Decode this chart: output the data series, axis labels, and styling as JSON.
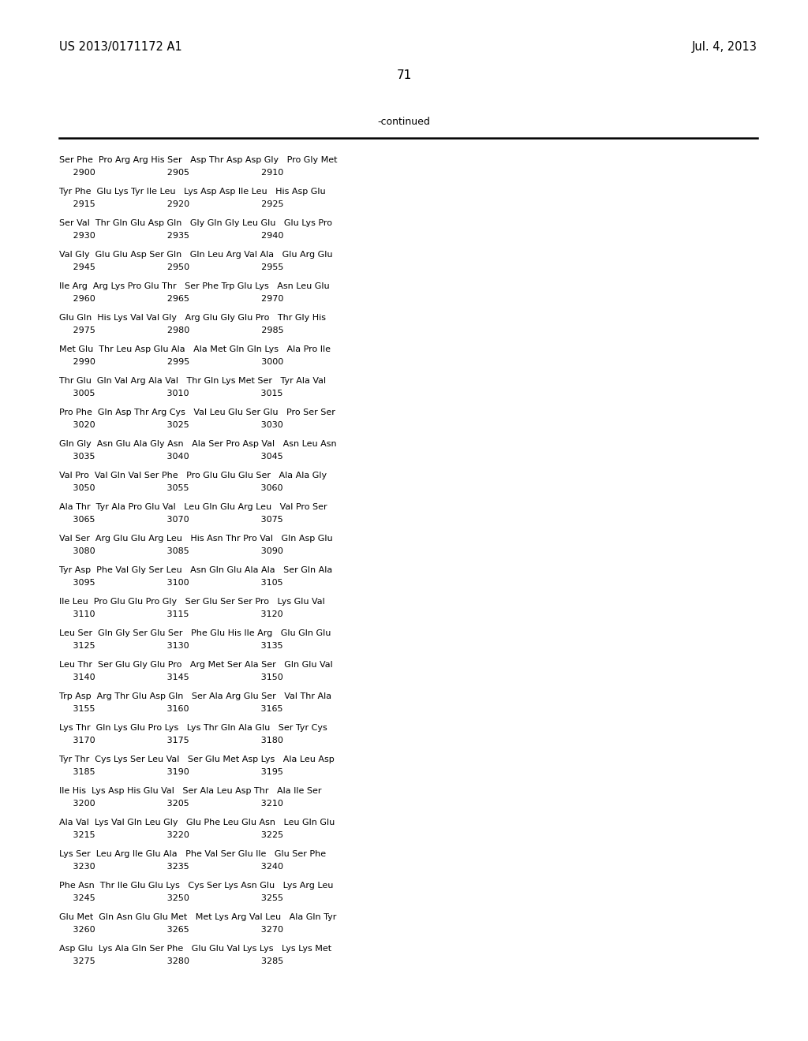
{
  "header_left": "US 2013/0171172 A1",
  "header_right": "Jul. 4, 2013",
  "page_number": "71",
  "continued_label": "-continued",
  "background_color": "#ffffff",
  "text_color": "#000000",
  "rows": [
    [
      "Ser Phe  Pro Arg Arg His Ser   Asp Thr Asp Asp Gly   Pro Gly Met",
      "     2900                          2905                          2910"
    ],
    [
      "Tyr Phe  Glu Lys Tyr Ile Leu   Lys Asp Asp Ile Leu   His Asp Glu",
      "     2915                          2920                          2925"
    ],
    [
      "Ser Val  Thr Gln Glu Asp Gln   Gly Gln Gly Leu Glu   Glu Lys Pro",
      "     2930                          2935                          2940"
    ],
    [
      "Val Gly  Glu Glu Asp Ser Gln   Gln Leu Arg Val Ala   Glu Arg Glu",
      "     2945                          2950                          2955"
    ],
    [
      "Ile Arg  Arg Lys Pro Glu Thr   Ser Phe Trp Glu Lys   Asn Leu Glu",
      "     2960                          2965                          2970"
    ],
    [
      "Glu Gln  His Lys Val Val Gly   Arg Glu Gly Glu Pro   Thr Gly His",
      "     2975                          2980                          2985"
    ],
    [
      "Met Glu  Thr Leu Asp Glu Ala   Ala Met Gln Gln Lys   Ala Pro Ile",
      "     2990                          2995                          3000"
    ],
    [
      "Thr Glu  Gln Val Arg Ala Val   Thr Gln Lys Met Ser   Tyr Ala Val",
      "     3005                          3010                          3015"
    ],
    [
      "Pro Phe  Gln Asp Thr Arg Cys   Val Leu Glu Ser Glu   Pro Ser Ser",
      "     3020                          3025                          3030"
    ],
    [
      "Gln Gly  Asn Glu Ala Gly Asn   Ala Ser Pro Asp Val   Asn Leu Asn",
      "     3035                          3040                          3045"
    ],
    [
      "Val Pro  Val Gln Val Ser Phe   Pro Glu Glu Glu Ser   Ala Ala Gly",
      "     3050                          3055                          3060"
    ],
    [
      "Ala Thr  Tyr Ala Pro Glu Val   Leu Gln Glu Arg Leu   Val Pro Ser",
      "     3065                          3070                          3075"
    ],
    [
      "Val Ser  Arg Glu Glu Arg Leu   His Asn Thr Pro Val   Gln Asp Glu",
      "     3080                          3085                          3090"
    ],
    [
      "Tyr Asp  Phe Val Gly Ser Leu   Asn Gln Glu Ala Ala   Ser Gln Ala",
      "     3095                          3100                          3105"
    ],
    [
      "Ile Leu  Pro Glu Glu Pro Gly   Ser Glu Ser Ser Pro   Lys Glu Val",
      "     3110                          3115                          3120"
    ],
    [
      "Leu Ser  Gln Gly Ser Glu Ser   Phe Glu His Ile Arg   Glu Gln Glu",
      "     3125                          3130                          3135"
    ],
    [
      "Leu Thr  Ser Glu Gly Glu Pro   Arg Met Ser Ala Ser   Gln Glu Val",
      "     3140                          3145                          3150"
    ],
    [
      "Trp Asp  Arg Thr Glu Asp Gln   Ser Ala Arg Glu Ser   Val Thr Ala",
      "     3155                          3160                          3165"
    ],
    [
      "Lys Thr  Gln Lys Glu Pro Lys   Lys Thr Gln Ala Glu   Ser Tyr Cys",
      "     3170                          3175                          3180"
    ],
    [
      "Tyr Thr  Cys Lys Ser Leu Val   Ser Glu Met Asp Lys   Ala Leu Asp",
      "     3185                          3190                          3195"
    ],
    [
      "Ile His  Lys Asp His Glu Val   Ser Ala Leu Asp Thr   Ala Ile Ser",
      "     3200                          3205                          3210"
    ],
    [
      "Ala Val  Lys Val Gln Leu Gly   Glu Phe Leu Glu Asn   Leu Gln Glu",
      "     3215                          3220                          3225"
    ],
    [
      "Lys Ser  Leu Arg Ile Glu Ala   Phe Val Ser Glu Ile   Glu Ser Phe",
      "     3230                          3235                          3240"
    ],
    [
      "Phe Asn  Thr Ile Glu Glu Lys   Cys Ser Lys Asn Glu   Lys Arg Leu",
      "     3245                          3250                          3255"
    ],
    [
      "Glu Met  Gln Asn Glu Glu Met   Met Lys Arg Val Leu   Ala Gln Tyr",
      "     3260                          3265                          3270"
    ],
    [
      "Asp Glu  Lys Ala Gln Ser Phe   Glu Glu Val Lys Lys   Lys Lys Met",
      "     3275                          3280                          3285"
    ]
  ]
}
